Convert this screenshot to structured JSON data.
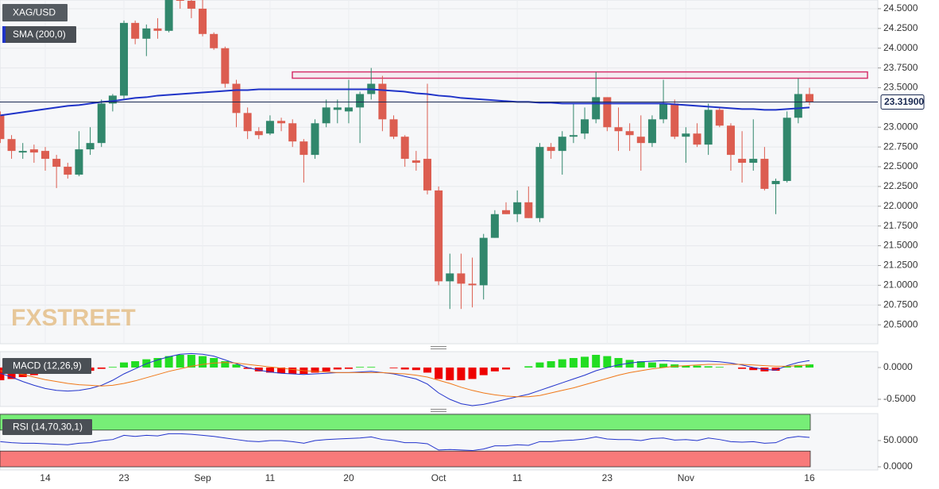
{
  "chart_data": {
    "type": "candlestick",
    "title": "XAG/USD",
    "watermark": "FXSTREET",
    "categories": [
      null,
      null,
      null,
      null,
      "14",
      null,
      null,
      null,
      null,
      null,
      null,
      "23",
      null,
      null,
      null,
      null,
      null,
      null,
      "Sep",
      null,
      null,
      null,
      null,
      null,
      "11",
      null,
      null,
      null,
      null,
      null,
      null,
      "20",
      null,
      null,
      null,
      null,
      null,
      null,
      null,
      "Oct",
      null,
      null,
      null,
      null,
      null,
      null,
      "11",
      null,
      null,
      null,
      null,
      null,
      null,
      null,
      "23",
      null,
      null,
      null,
      null,
      null,
      null,
      "Nov",
      null,
      null,
      null,
      null,
      null,
      null,
      null,
      null,
      null,
      null,
      "16"
    ],
    "open": [
      23.15,
      22.85,
      22.68,
      22.72,
      22.7,
      22.6,
      22.5,
      22.4,
      22.72,
      22.8,
      23.3,
      23.4,
      24.32,
      24.12,
      24.25,
      24.22,
      24.7,
      24.6,
      24.5,
      24.18,
      24.0,
      23.55,
      23.18,
      22.95,
      22.92,
      23.08,
      23.05,
      22.82,
      22.65,
      23.05,
      23.22,
      23.2,
      23.25,
      23.42,
      23.55,
      23.1,
      22.88,
      22.58,
      22.6,
      22.2,
      21.05,
      21.15,
      21.02,
      21.0,
      21.6,
      21.95,
      21.9,
      22.05,
      21.85,
      22.75,
      22.7,
      22.88,
      22.92,
      23.1,
      23.38,
      23.0,
      22.95,
      22.88,
      22.8,
      23.1,
      23.3,
      22.88,
      22.92,
      22.78,
      23.22,
      23.02,
      22.6,
      22.55,
      22.6,
      22.28,
      22.32,
      23.12,
      23.42
    ],
    "high": [
      23.2,
      22.9,
      22.8,
      22.78,
      22.75,
      22.65,
      22.55,
      22.95,
      23.0,
      23.35,
      23.42,
      24.35,
      24.35,
      24.3,
      24.38,
      24.85,
      24.9,
      24.7,
      24.7,
      24.2,
      24.02,
      23.6,
      23.25,
      23.0,
      23.15,
      23.12,
      23.1,
      22.85,
      23.1,
      23.35,
      23.35,
      23.6,
      23.45,
      23.75,
      23.65,
      23.15,
      22.9,
      22.7,
      23.55,
      22.25,
      21.4,
      21.4,
      21.35,
      21.65,
      21.95,
      22.05,
      22.2,
      22.25,
      22.8,
      22.8,
      22.95,
      23.3,
      23.25,
      23.7,
      23.38,
      23.25,
      23.05,
      23.15,
      23.15,
      23.6,
      23.35,
      23.0,
      23.05,
      23.3,
      23.25,
      23.05,
      22.95,
      23.1,
      22.75,
      22.35,
      23.2,
      23.62,
      23.5
    ],
    "low": [
      22.8,
      22.6,
      22.6,
      22.55,
      22.45,
      22.23,
      22.35,
      22.38,
      22.65,
      22.75,
      23.2,
      23.35,
      24.05,
      23.9,
      24.12,
      24.2,
      24.5,
      24.38,
      24.15,
      23.98,
      23.5,
      23.0,
      22.85,
      22.85,
      22.9,
      22.95,
      22.75,
      22.3,
      22.6,
      23.0,
      23.05,
      23.05,
      22.8,
      23.35,
      22.95,
      22.85,
      22.5,
      22.45,
      22.15,
      21.0,
      20.7,
      20.7,
      20.72,
      20.82,
      21.6,
      21.9,
      21.8,
      21.85,
      21.8,
      22.6,
      22.4,
      22.8,
      22.85,
      23.05,
      22.95,
      22.7,
      22.7,
      22.45,
      22.75,
      23.05,
      22.85,
      22.55,
      22.75,
      22.65,
      23.0,
      22.45,
      22.3,
      22.45,
      22.2,
      21.9,
      22.3,
      23.05,
      23.28
    ],
    "close": [
      22.85,
      22.7,
      22.7,
      22.68,
      22.6,
      22.5,
      22.4,
      22.72,
      22.8,
      23.3,
      23.4,
      24.32,
      24.12,
      24.25,
      24.22,
      24.7,
      24.6,
      24.5,
      24.18,
      24.0,
      23.55,
      23.18,
      22.95,
      22.9,
      23.08,
      23.05,
      22.82,
      22.65,
      23.05,
      23.25,
      23.25,
      23.25,
      23.42,
      23.55,
      23.1,
      22.88,
      22.6,
      22.55,
      22.2,
      21.05,
      21.15,
      21.02,
      21.0,
      21.6,
      21.9,
      21.9,
      22.05,
      21.85,
      22.75,
      22.7,
      22.88,
      22.9,
      23.1,
      23.38,
      23.0,
      22.95,
      22.9,
      22.8,
      23.1,
      23.3,
      22.88,
      22.92,
      22.78,
      23.22,
      23.02,
      22.65,
      22.55,
      22.6,
      22.22,
      22.32,
      23.12,
      23.42,
      23.32
    ],
    "up_color": "#31876c",
    "down_color": "#dc5d50",
    "ylim": [
      20.26,
      24.61
    ],
    "yticks": [
      {
        "value": 24.5,
        "label": "24.5000"
      },
      {
        "value": 24.25,
        "label": "24.2500"
      },
      {
        "value": 24,
        "label": "24.0000"
      },
      {
        "value": 23.75,
        "label": "23.7500"
      },
      {
        "value": 23.5,
        "label": "23.5000"
      },
      {
        "value": 23,
        "label": "23.0000"
      },
      {
        "value": 22.75,
        "label": "22.7500"
      },
      {
        "value": 22.5,
        "label": "22.5000"
      },
      {
        "value": 22.25,
        "label": "22.2500"
      },
      {
        "value": 22,
        "label": "22.0000"
      },
      {
        "value": 21.75,
        "label": "21.7500"
      },
      {
        "value": 21.5,
        "label": "21.5000"
      },
      {
        "value": 21.25,
        "label": "21.2500"
      },
      {
        "value": 21,
        "label": "21.0000"
      },
      {
        "value": 20.75,
        "label": "20.7500"
      },
      {
        "value": 20.5,
        "label": "20.5000"
      }
    ],
    "grid": true,
    "last_price": {
      "value": 23.319,
      "label": "23.31900"
    },
    "zone": [
      23.62,
      23.7
    ],
    "zone_color": "#d6336c",
    "sma": {
      "name": "SMA (200,0)",
      "color": "#1f33c8",
      "values": [
        23.15,
        23.17,
        23.19,
        23.21,
        23.23,
        23.25,
        23.27,
        23.28,
        23.3,
        23.32,
        23.33,
        23.35,
        23.37,
        23.38,
        23.4,
        23.41,
        23.42,
        23.43,
        23.44,
        23.45,
        23.46,
        23.47,
        23.47,
        23.48,
        23.48,
        23.48,
        23.48,
        23.48,
        23.48,
        23.48,
        23.48,
        23.48,
        23.48,
        23.48,
        23.47,
        23.46,
        23.45,
        23.43,
        23.42,
        23.4,
        23.39,
        23.37,
        23.36,
        23.35,
        23.34,
        23.33,
        23.32,
        23.32,
        23.31,
        23.31,
        23.3,
        23.3,
        23.3,
        23.3,
        23.3,
        23.3,
        23.3,
        23.3,
        23.3,
        23.3,
        23.29,
        23.28,
        23.27,
        23.26,
        23.25,
        23.24,
        23.23,
        23.23,
        23.22,
        23.22,
        23.23,
        23.24,
        23.25
      ]
    },
    "macd": {
      "title": "MACD (12,26,9)",
      "ylim": [
        -0.6125,
        0.25
      ],
      "yticks": [
        {
          "value": 0,
          "label": "0.0000"
        },
        {
          "value": -0.5,
          "label": "-0.5000"
        }
      ],
      "up_color": "#22dd22",
      "down_color": "#ee0000",
      "macd_color": "#2233cc",
      "signal_color": "#f07818",
      "histogram": [
        -0.2,
        -0.18,
        -0.15,
        -0.12,
        -0.1,
        -0.09,
        -0.08,
        -0.06,
        -0.05,
        -0.02,
        0.01,
        0.08,
        0.1,
        0.13,
        0.15,
        0.18,
        0.2,
        0.2,
        0.18,
        0.15,
        0.1,
        0.05,
        -0.02,
        -0.06,
        -0.08,
        -0.09,
        -0.1,
        -0.1,
        -0.08,
        -0.06,
        -0.03,
        -0.02,
        0.01,
        0.01,
        0,
        -0.01,
        -0.03,
        -0.04,
        -0.08,
        -0.18,
        -0.2,
        -0.2,
        -0.18,
        -0.12,
        -0.06,
        -0.03,
        0,
        0.02,
        0.08,
        0.1,
        0.13,
        0.15,
        0.17,
        0.2,
        0.18,
        0.15,
        0.12,
        0.1,
        0.08,
        0.06,
        0.05,
        0.03,
        0.03,
        0.02,
        0.01,
        0,
        -0.02,
        -0.04,
        -0.06,
        -0.05,
        0.02,
        0.04,
        0.05
      ],
      "macd": [
        -0.09,
        -0.15,
        -0.22,
        -0.28,
        -0.33,
        -0.36,
        -0.37,
        -0.36,
        -0.33,
        -0.28,
        -0.2,
        -0.1,
        -0.02,
        0.06,
        0.12,
        0.17,
        0.21,
        0.22,
        0.21,
        0.18,
        0.12,
        0.06,
        0,
        -0.04,
        -0.07,
        -0.09,
        -0.1,
        -0.11,
        -0.1,
        -0.09,
        -0.08,
        -0.08,
        -0.07,
        -0.06,
        -0.08,
        -0.1,
        -0.14,
        -0.18,
        -0.26,
        -0.4,
        -0.5,
        -0.57,
        -0.6,
        -0.58,
        -0.54,
        -0.5,
        -0.46,
        -0.42,
        -0.36,
        -0.3,
        -0.24,
        -0.18,
        -0.12,
        -0.05,
        0,
        0.04,
        0.07,
        0.09,
        0.1,
        0.11,
        0.1,
        0.1,
        0.1,
        0.1,
        0.09,
        0.07,
        0.04,
        0,
        -0.03,
        -0.04,
        0.03,
        0.08,
        0.11
      ],
      "signal": [
        -0.05,
        -0.08,
        -0.11,
        -0.15,
        -0.19,
        -0.22,
        -0.25,
        -0.27,
        -0.28,
        -0.29,
        -0.28,
        -0.25,
        -0.21,
        -0.16,
        -0.11,
        -0.06,
        -0.02,
        0.02,
        0.05,
        0.07,
        0.08,
        0.07,
        0.05,
        0.03,
        0.01,
        -0.01,
        -0.03,
        -0.05,
        -0.06,
        -0.07,
        -0.08,
        -0.08,
        -0.08,
        -0.08,
        -0.08,
        -0.09,
        -0.1,
        -0.12,
        -0.15,
        -0.2,
        -0.25,
        -0.31,
        -0.36,
        -0.4,
        -0.43,
        -0.45,
        -0.46,
        -0.46,
        -0.44,
        -0.4,
        -0.36,
        -0.32,
        -0.27,
        -0.22,
        -0.17,
        -0.12,
        -0.08,
        -0.05,
        -0.02,
        0,
        0.02,
        0.03,
        0.04,
        0.05,
        0.05,
        0.05,
        0.05,
        0.04,
        0.03,
        0.02,
        0.02,
        0.03,
        0.04
      ]
    },
    "rsi": {
      "title": "RSI (14,70,30,1)",
      "ylim": [
        -6,
        101.5
      ],
      "yticks": [
        {
          "value": 50,
          "label": "50.0000"
        },
        {
          "value": 0,
          "label": "0.0000"
        }
      ],
      "overbought": 70,
      "oversold": 30,
      "max": 100,
      "overbought_color": "#77ee77",
      "oversold_color": "#f87a7a",
      "color": "#2233cc",
      "values": [
        48,
        46,
        45,
        45,
        44,
        43,
        42,
        45,
        46,
        50,
        52,
        60,
        58,
        60,
        59,
        63,
        63,
        62,
        60,
        58,
        55,
        52,
        49,
        48,
        50,
        50,
        48,
        45,
        50,
        52,
        53,
        54,
        55,
        57,
        52,
        50,
        46,
        46,
        44,
        32,
        33,
        32,
        31,
        34,
        40,
        40,
        42,
        41,
        48,
        48,
        50,
        51,
        53,
        57,
        53,
        52,
        52,
        50,
        54,
        55,
        51,
        52,
        50,
        55,
        52,
        48,
        47,
        48,
        45,
        46,
        55,
        58,
        56
      ]
    }
  }
}
